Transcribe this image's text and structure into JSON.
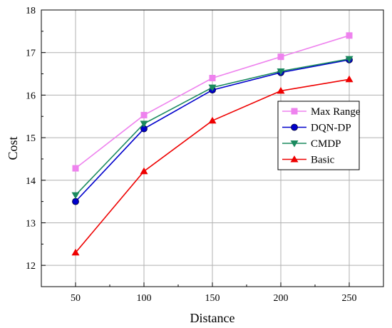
{
  "chart_data": {
    "type": "line",
    "xlabel": "Distance",
    "ylabel": "Cost",
    "x": [
      50,
      100,
      150,
      200,
      250
    ],
    "xticks": [
      "50",
      "100",
      "150",
      "200",
      "250"
    ],
    "yticks": [
      "12",
      "13",
      "14",
      "15",
      "16",
      "17",
      "18"
    ],
    "xlim": [
      25,
      275
    ],
    "ylim": [
      11.5,
      18
    ],
    "grid": true,
    "legend_position": "center-right",
    "series": [
      {
        "name": "Max Range",
        "values": [
          14.28,
          15.53,
          16.4,
          16.9,
          17.4
        ],
        "color": "#ee82ee",
        "marker": "square"
      },
      {
        "name": "DQN-DP",
        "values": [
          13.5,
          15.21,
          16.12,
          16.53,
          16.83
        ],
        "color": "#0000cc",
        "marker": "circle"
      },
      {
        "name": "CMDP",
        "values": [
          13.65,
          15.33,
          16.18,
          16.56,
          16.85
        ],
        "color": "#1a8a5e",
        "marker": "triangle-down"
      },
      {
        "name": "Basic",
        "values": [
          12.3,
          14.21,
          15.4,
          16.1,
          16.37
        ],
        "color": "#ee0000",
        "marker": "triangle-up"
      }
    ]
  }
}
